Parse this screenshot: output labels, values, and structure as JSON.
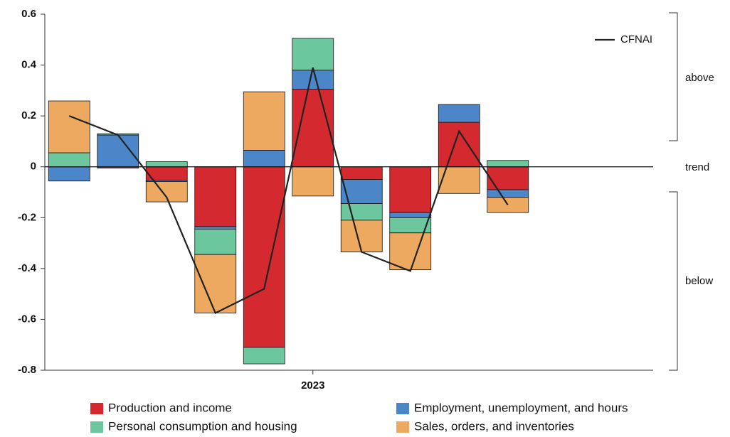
{
  "chart_data": {
    "type": "bar",
    "categories": [
      null,
      null,
      null,
      null,
      null,
      "2023",
      null,
      null,
      null,
      null
    ],
    "series": [
      {
        "name": "Production and income",
        "color": "#d42a2f",
        "values": [
          0,
          -0.005,
          -0.053,
          -0.235,
          -0.71,
          0.305,
          -0.05,
          -0.18,
          0.175,
          -0.09
        ]
      },
      {
        "name": "Employment, unemployment, and hours",
        "color": "#4a86c8",
        "values": [
          -0.056,
          0.125,
          -0.005,
          -0.01,
          0.065,
          0.075,
          -0.095,
          -0.02,
          0.07,
          -0.03
        ]
      },
      {
        "name": "Personal consumption and housing",
        "color": "#6cc79e",
        "values": [
          0.055,
          0.005,
          0.02,
          -0.1,
          -0.065,
          0.125,
          -0.065,
          -0.06,
          0,
          0.025
        ]
      },
      {
        "name": "Sales, orders, and inventories",
        "color": "#eda95f",
        "values": [
          0.204,
          0,
          -0.08,
          -0.23,
          0.23,
          -0.115,
          -0.125,
          -0.145,
          -0.105,
          -0.06
        ]
      }
    ],
    "line": {
      "name": "CFNAI",
      "color": "#222222",
      "values": [
        0.2,
        0.125,
        -0.12,
        -0.575,
        -0.48,
        0.39,
        -0.335,
        -0.41,
        0.14,
        -0.15
      ]
    },
    "ylim": [
      -0.8,
      0.6
    ],
    "yticks": [
      {
        "value": 0.6,
        "label": "0.6"
      },
      {
        "value": 0.4,
        "label": "0.4"
      },
      {
        "value": 0.2,
        "label": "0.2"
      },
      0,
      {
        "value": -0.2,
        "label": "-0.2"
      },
      {
        "value": -0.4,
        "label": "-0.4"
      },
      {
        "value": -0.6,
        "label": "-0.6"
      },
      {
        "value": -0.8,
        "label": "-0.8"
      }
    ],
    "annotations": [
      "above",
      "trend",
      "below"
    ]
  }
}
